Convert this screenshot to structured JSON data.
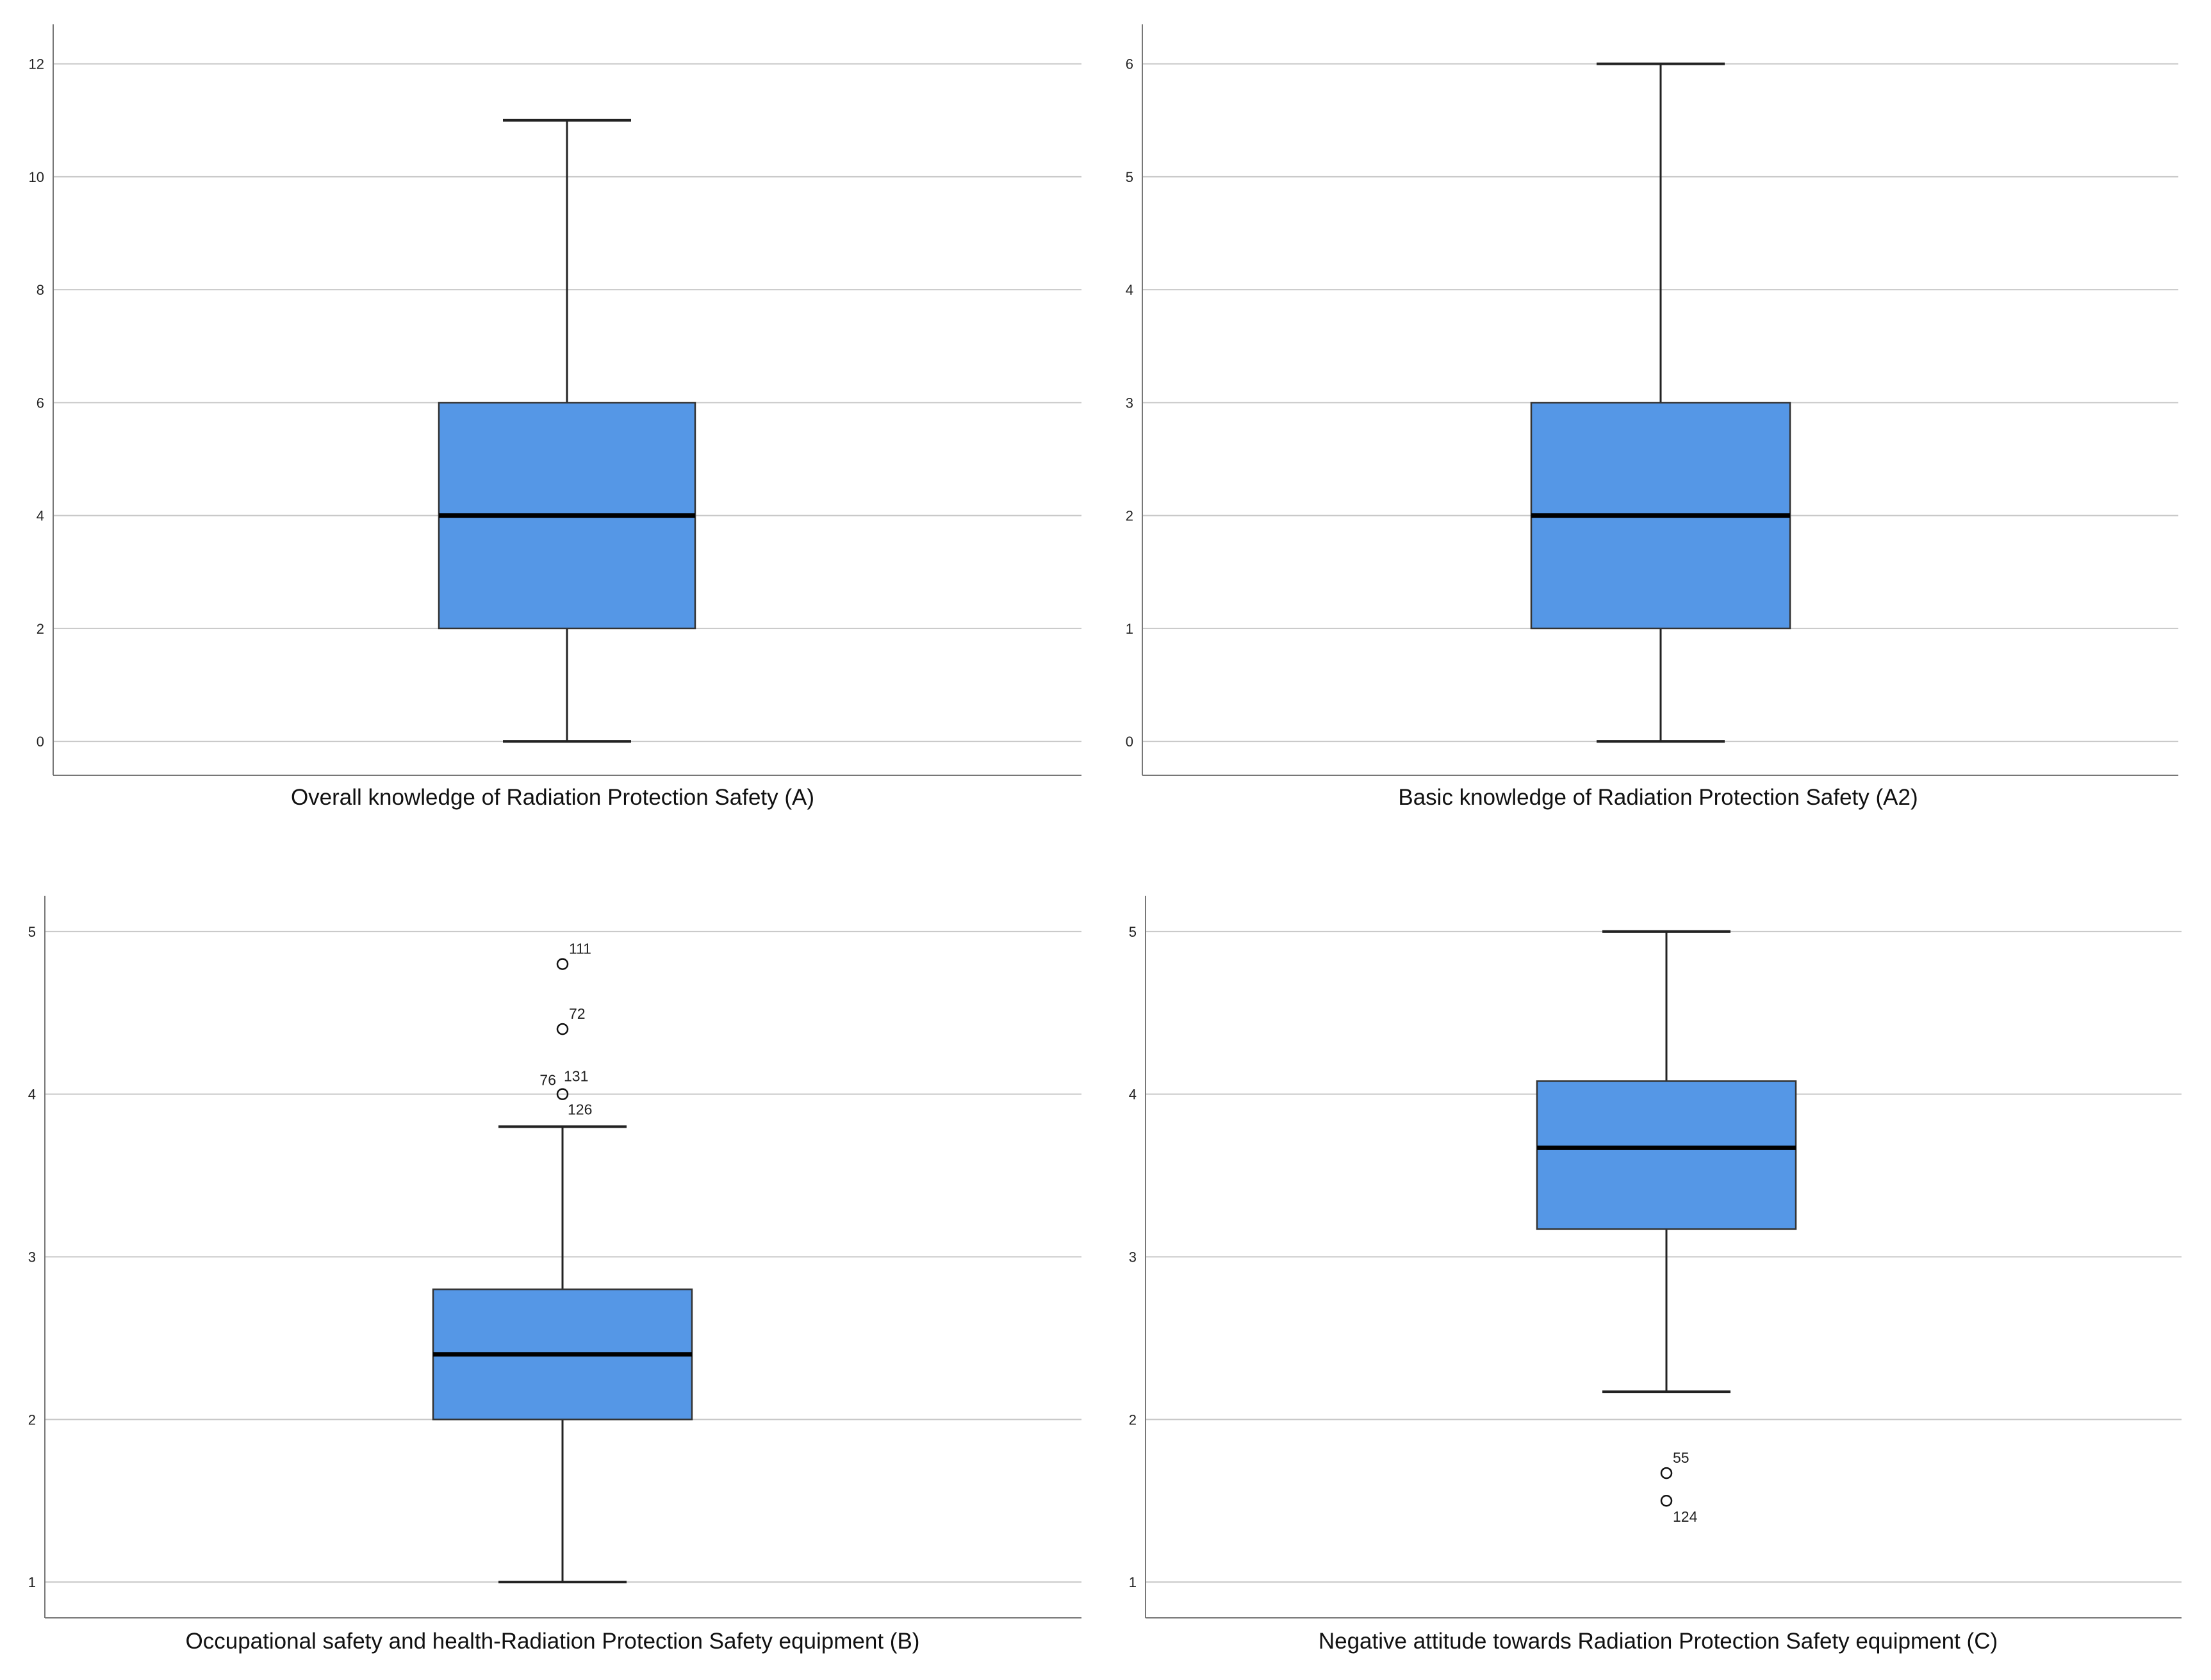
{
  "colors": {
    "box_fill": "#5597e6",
    "box_stroke": "#333333",
    "median": "#000000",
    "grid": "#c8c8c8",
    "axis": "#777777",
    "whisker": "#222222"
  },
  "chart_data": [
    {
      "type": "box",
      "xlabel": "Overall knowledge of Radiation Protection Safety (A)",
      "ylabel": "",
      "ylim": [
        -0.6,
        12.7
      ],
      "yticks": [
        0,
        2,
        4,
        6,
        8,
        10,
        12
      ],
      "grid": true,
      "box": {
        "min": 0,
        "q1": 2,
        "median": 4,
        "q3": 6,
        "max": 11
      },
      "outliers": []
    },
    {
      "type": "box",
      "xlabel": "Basic knowledge of Radiation Protection Safety (A2)",
      "ylabel": "",
      "ylim": [
        -0.3,
        6.35
      ],
      "yticks": [
        0,
        1,
        2,
        3,
        4,
        5,
        6
      ],
      "grid": true,
      "box": {
        "min": 0,
        "q1": 1,
        "median": 2,
        "q3": 3,
        "max": 6
      },
      "outliers": []
    },
    {
      "type": "box",
      "xlabel": "Occupational safety and health-Radiation Protection Safety equipment (B)",
      "ylabel": "",
      "ylim": [
        0.78,
        5.22
      ],
      "yticks": [
        1,
        2,
        3,
        4,
        5
      ],
      "grid": true,
      "box": {
        "min": 1,
        "q1": 2,
        "median": 2.4,
        "q3": 2.8,
        "max": 3.8
      },
      "outliers": [
        {
          "value": 4.8,
          "labels": [
            "111"
          ]
        },
        {
          "value": 4.4,
          "labels": [
            "72"
          ]
        },
        {
          "value": 4.0,
          "labels": [
            "76",
            "131",
            "126"
          ]
        }
      ]
    },
    {
      "type": "box",
      "xlabel": "Negative attitude towards Radiation Protection Safety equipment (C)",
      "ylabel": "",
      "ylim": [
        0.78,
        5.22
      ],
      "yticks": [
        1,
        2,
        3,
        4,
        5
      ],
      "grid": true,
      "box": {
        "min": 2.17,
        "q1": 3.17,
        "median": 3.67,
        "q3": 4.08,
        "max": 5
      },
      "outliers": [
        {
          "value": 1.67,
          "labels": [
            "55"
          ]
        },
        {
          "value": 1.5,
          "labels": [
            "124"
          ]
        }
      ]
    }
  ]
}
